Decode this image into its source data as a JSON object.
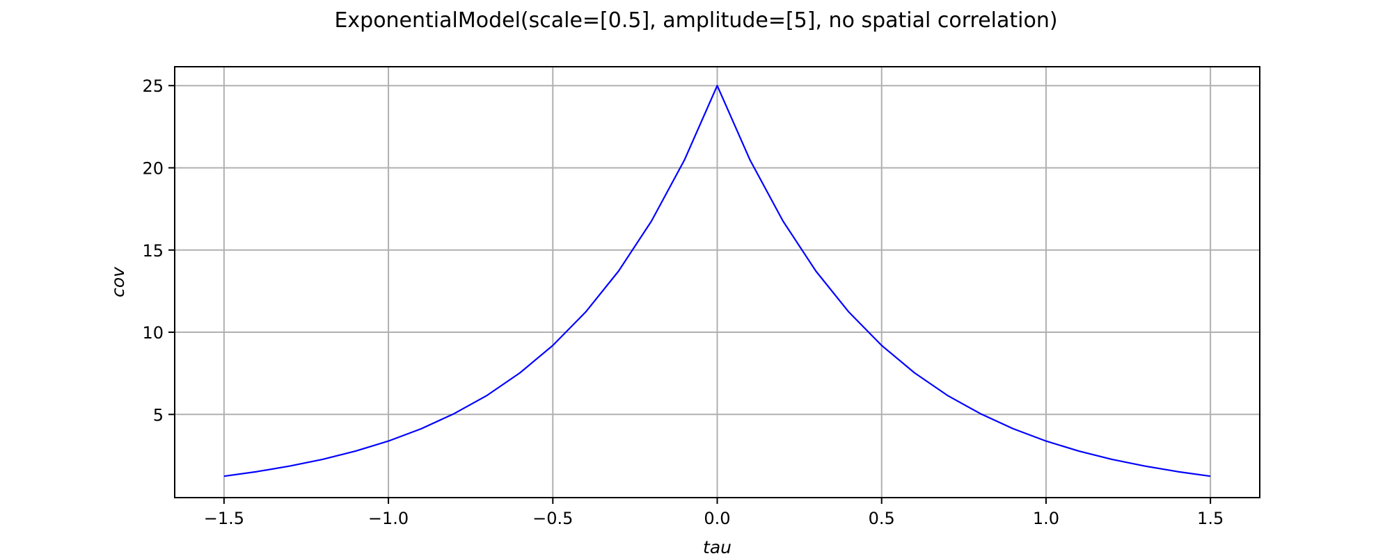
{
  "chart_data": {
    "type": "line",
    "title": "ExponentialModel(scale=[0.5], amplitude=[5], no spatial correlation)",
    "xlabel": "tau",
    "ylabel": "cov",
    "xlim": [
      -1.65,
      1.65
    ],
    "ylim": [
      -0.06,
      26.15
    ],
    "x_ticks": [
      -1.5,
      -1.0,
      -0.5,
      0.0,
      0.5,
      1.0,
      1.5
    ],
    "x_tick_labels": [
      "−1.5",
      "−1.0",
      "−0.5",
      "0.0",
      "0.5",
      "1.0",
      "1.5"
    ],
    "y_ticks": [
      5,
      10,
      15,
      20,
      25
    ],
    "y_tick_labels": [
      "5",
      "10",
      "15",
      "20",
      "25"
    ],
    "grid": true,
    "series": [
      {
        "color": "#0000ff",
        "x": [
          -1.5,
          -1.4,
          -1.3,
          -1.2,
          -1.1,
          -1.0,
          -0.9,
          -0.8,
          -0.7,
          -0.6,
          -0.5,
          -0.4,
          -0.3,
          -0.2,
          -0.1,
          0.0,
          0.1,
          0.2,
          0.3,
          0.4,
          0.5,
          0.6,
          0.7,
          0.8,
          0.9,
          1.0,
          1.1,
          1.2,
          1.3,
          1.4,
          1.5
        ],
        "y": [
          1.24,
          1.52,
          1.86,
          2.27,
          2.77,
          3.38,
          4.13,
          5.05,
          6.16,
          7.53,
          9.2,
          11.23,
          13.72,
          16.76,
          20.47,
          25.0,
          20.47,
          16.76,
          13.72,
          11.23,
          9.2,
          7.53,
          6.16,
          5.05,
          4.13,
          3.38,
          2.77,
          2.27,
          1.86,
          1.52,
          1.24
        ]
      }
    ]
  }
}
